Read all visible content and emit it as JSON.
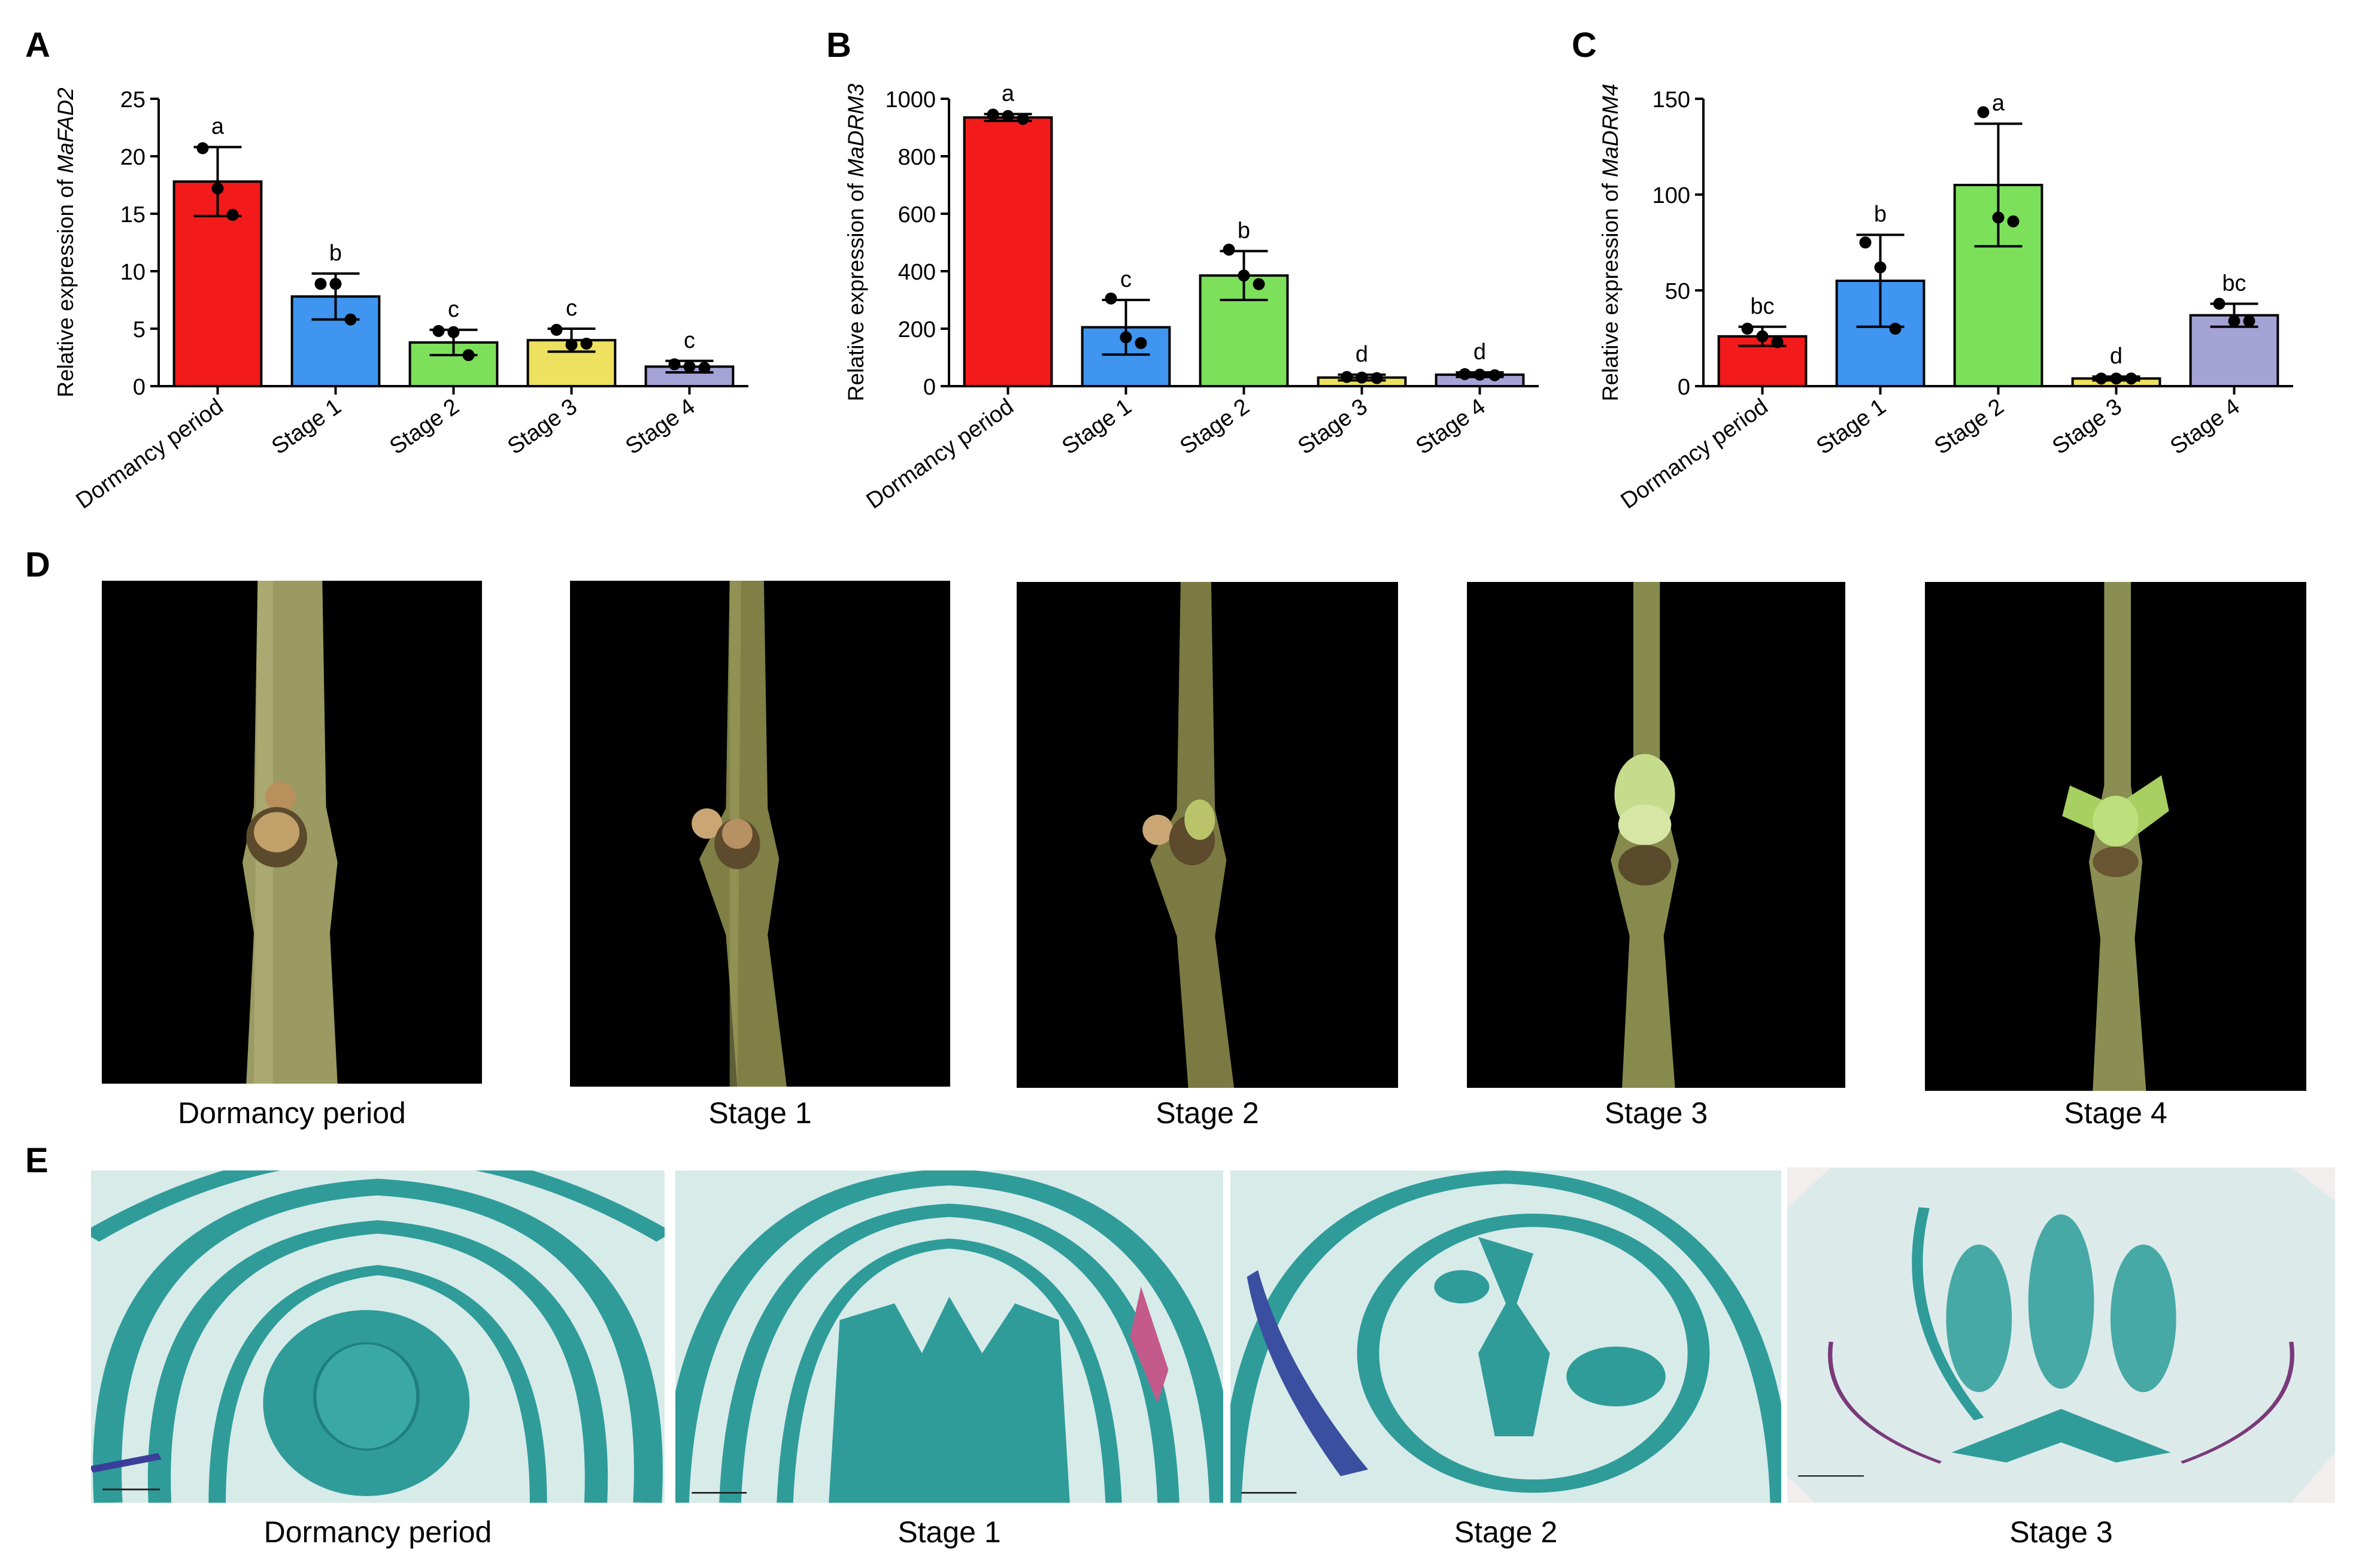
{
  "panels": {
    "a": "A",
    "b": "B",
    "c": "C",
    "d": "D",
    "e": "E"
  },
  "chart_data": [
    {
      "type": "bar",
      "panel": "A",
      "title": "",
      "ylabel_prefix": "Relative expression of ",
      "ylabel_gene": "MaFAD2",
      "categories": [
        "Dormancy period",
        "Stage 1",
        "Stage 2",
        "Stage 3",
        "Stage 4"
      ],
      "values": [
        17.8,
        7.8,
        3.8,
        4.0,
        1.7
      ],
      "error": [
        3.0,
        2.0,
        1.1,
        1.0,
        0.5
      ],
      "letters": [
        "a",
        "b",
        "c",
        "c",
        "c"
      ],
      "points": [
        [
          20.7,
          17.2,
          14.9
        ],
        [
          8.9,
          8.9,
          5.8
        ],
        [
          4.8,
          4.7,
          2.7
        ],
        [
          4.9,
          3.6,
          3.7
        ],
        [
          1.9,
          1.7,
          1.6
        ]
      ],
      "ylim": [
        0,
        25
      ],
      "yticks": [
        0,
        5,
        10,
        15,
        20,
        25
      ],
      "colors": [
        "#f21a1a",
        "#3f95f0",
        "#7de05a",
        "#ede15f",
        "#a5a2d6"
      ],
      "grid": false
    },
    {
      "type": "bar",
      "panel": "B",
      "title": "",
      "ylabel_prefix": "Relative expression of ",
      "ylabel_gene": "MaDRM3",
      "categories": [
        "Dormancy period",
        "Stage 1",
        "Stage 2",
        "Stage 3",
        "Stage 4"
      ],
      "values": [
        935,
        205,
        385,
        30,
        40
      ],
      "error": [
        12,
        95,
        85,
        10,
        8
      ],
      "letters": [
        "a",
        "c",
        "b",
        "d",
        "d"
      ],
      "points": [
        [
          945,
          940,
          930
        ],
        [
          305,
          170,
          150
        ],
        [
          475,
          385,
          355
        ],
        [
          32,
          30,
          28
        ],
        [
          42,
          40,
          38
        ]
      ],
      "ylim": [
        0,
        1000
      ],
      "yticks": [
        0,
        200,
        400,
        600,
        800,
        1000
      ],
      "colors": [
        "#f21a1a",
        "#3f95f0",
        "#7de05a",
        "#ede15f",
        "#a5a2d6"
      ],
      "grid": false
    },
    {
      "type": "bar",
      "panel": "C",
      "title": "",
      "ylabel_prefix": "Relative expression of ",
      "ylabel_gene": "MaDRM4",
      "categories": [
        "Dormancy period",
        "Stage 1",
        "Stage 2",
        "Stage 3",
        "Stage 4"
      ],
      "values": [
        26,
        55,
        105,
        4,
        37
      ],
      "error": [
        5,
        24,
        32,
        1,
        6
      ],
      "letters": [
        "bc",
        "b",
        "a",
        "d",
        "bc"
      ],
      "points": [
        [
          30,
          26,
          23
        ],
        [
          75,
          62,
          30
        ],
        [
          143,
          88,
          86
        ],
        [
          4,
          4,
          4
        ],
        [
          43,
          34,
          34
        ]
      ],
      "ylim": [
        0,
        150
      ],
      "yticks": [
        0,
        50,
        100,
        150
      ],
      "colors": [
        "#f21a1a",
        "#3f95f0",
        "#7de05a",
        "#ede15f",
        "#a5a2d6"
      ],
      "grid": false
    }
  ],
  "photos": {
    "captions": [
      "Dormancy period",
      "Stage 1",
      "Stage 2",
      "Stage 3",
      "Stage 4"
    ]
  },
  "sections": {
    "captions": [
      "Dormancy period",
      "Stage 1",
      "Stage 2",
      "Stage 3"
    ]
  },
  "colors": {
    "background": "#ffffff",
    "photo_background": "#000000",
    "twig": "#8f8f58",
    "section_bg": "#d7ebe9",
    "section_tissue": "#2f9c9a"
  }
}
